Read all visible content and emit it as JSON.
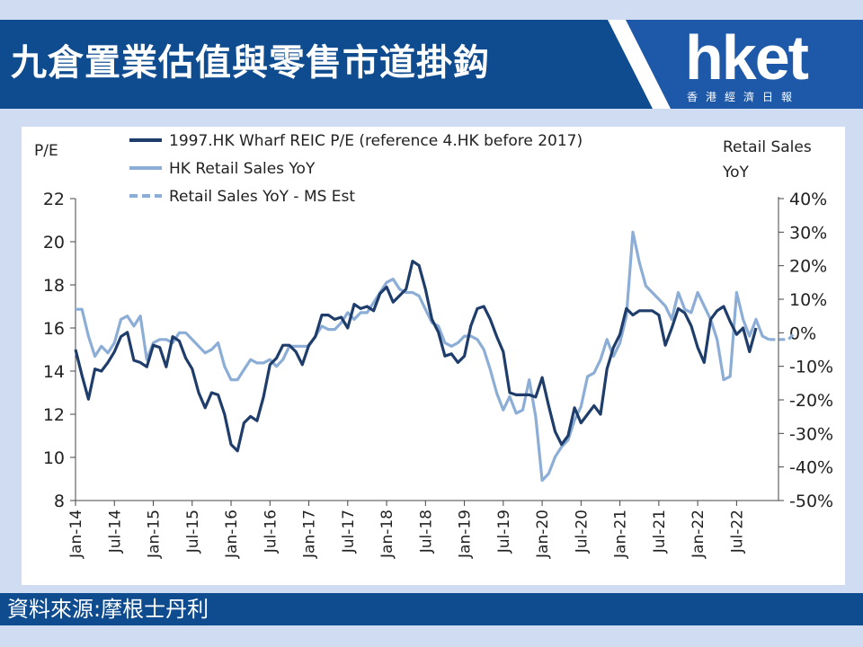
{
  "header": {
    "title": "九倉置業估值與零售市道掛鈎",
    "logo_text": "hket",
    "logo_subtext": "香港經濟日報"
  },
  "footer": {
    "source": "資料來源:摩根士丹利"
  },
  "colors": {
    "banner": "#0f4c8f",
    "background": "#cfdcf2",
    "pe_line": "#1f3d6b",
    "retail_line": "#8cadd6"
  },
  "chart_data": {
    "type": "line",
    "title": "",
    "left_axis_label": "P/E",
    "right_axis_label_line1": "Retail Sales",
    "right_axis_label_line2": "YoY",
    "left_ylim": [
      8,
      22
    ],
    "left_ticks": [
      22,
      20,
      18,
      16,
      14,
      12,
      10,
      8
    ],
    "right_ylim": [
      -50,
      40
    ],
    "right_ticks": [
      "40%",
      "30%",
      "20%",
      "10%",
      "0%",
      "-10%",
      "-20%",
      "-30%",
      "-40%",
      "-50%"
    ],
    "right_tick_values": [
      40,
      30,
      20,
      10,
      0,
      -10,
      -20,
      -30,
      -40,
      -50
    ],
    "x_tick_labels": [
      "Jan-14",
      "Jul-14",
      "Jan-15",
      "Jul-15",
      "Jan-16",
      "Jul-16",
      "Jan-17",
      "Jul-17",
      "Jan-18",
      "Jul-18",
      "Jan-19",
      "Jul-19",
      "Jan-20",
      "Jul-20",
      "Jan-21",
      "Jul-21",
      "Jan-22",
      "Jul-22"
    ],
    "legend_position": "top",
    "grid": false,
    "series": [
      {
        "name": "1997.HK Wharf REIC P/E (reference 4.HK before 2017)",
        "axis": "left",
        "style": "solid-dark",
        "values": [
          15.0,
          13.8,
          12.7,
          14.1,
          14.0,
          14.4,
          14.9,
          15.6,
          15.8,
          14.5,
          14.4,
          14.2,
          15.2,
          15.1,
          14.2,
          15.6,
          15.4,
          14.6,
          14.1,
          13.0,
          12.3,
          13.0,
          12.9,
          12.0,
          10.6,
          10.3,
          11.6,
          11.9,
          11.7,
          12.8,
          14.3,
          14.6,
          15.2,
          15.2,
          14.9,
          14.3,
          15.2,
          15.6,
          16.6,
          16.6,
          16.4,
          16.5,
          16.0,
          17.1,
          16.9,
          17.0,
          16.8,
          17.6,
          17.9,
          17.2,
          17.5,
          17.8,
          19.1,
          18.9,
          17.8,
          16.4,
          15.8,
          14.7,
          14.8,
          14.4,
          14.7,
          16.1,
          16.9,
          17.0,
          16.4,
          15.6,
          14.9,
          13.0,
          12.9,
          12.9,
          12.9,
          12.8,
          13.7,
          12.4,
          11.2,
          10.6,
          11.0,
          12.3,
          11.6,
          12.0,
          12.4,
          12.0,
          14.1,
          15.1,
          15.7,
          16.9,
          16.6,
          16.8,
          16.8,
          16.8,
          16.6,
          15.2,
          16.0,
          16.9,
          16.7,
          16.1,
          15.1,
          14.4,
          16.4,
          16.8,
          17.0,
          16.3,
          15.7,
          16.0,
          14.9,
          16.0
        ]
      },
      {
        "name": "HK Retail Sales YoY",
        "axis": "right",
        "style": "solid-light",
        "values": [
          7,
          7,
          -1,
          -7,
          -4,
          -6,
          -3,
          4,
          5,
          2,
          5,
          -8,
          -3,
          -2,
          -2,
          -3,
          0,
          0,
          -2,
          -4,
          -6,
          -5,
          -3,
          -10,
          -14,
          -14,
          -11,
          -8,
          -9,
          -9,
          -8,
          -10,
          -8,
          -4,
          -4,
          -4,
          -4,
          -1,
          2,
          1,
          1,
          3,
          6,
          4,
          6,
          6,
          9,
          12,
          15,
          16,
          13,
          12,
          12,
          11,
          7,
          3,
          2,
          -3,
          -4,
          -3,
          -1,
          -1,
          -2,
          -5,
          -11,
          -18,
          -23,
          -19,
          -24,
          -23,
          -14,
          -25,
          -44,
          -42,
          -37,
          -34,
          -32,
          -26,
          -22,
          -13,
          -12,
          -8,
          -2,
          -7,
          -3,
          5,
          30,
          21,
          14,
          12,
          10,
          8,
          4,
          12,
          7,
          6,
          12,
          8,
          4,
          -2,
          -14,
          -13,
          12,
          4,
          -1,
          4,
          -1,
          -2
        ]
      },
      {
        "name": "Retail Sales YoY - MS Est",
        "axis": "right",
        "style": "dashed-light",
        "values": [
          -2,
          -2,
          -2,
          -2,
          0
        ]
      }
    ]
  }
}
